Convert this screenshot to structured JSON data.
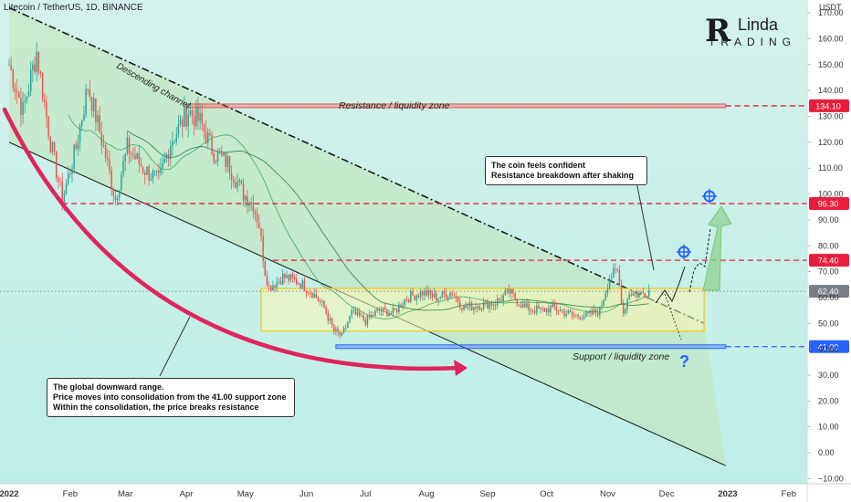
{
  "chart_title": "Litecoin / TetherUS, 1D, BINANCE",
  "logo": {
    "mark": "R",
    "word": "Linda",
    "sub": "TRADING"
  },
  "chart_data": {
    "type": "candlestick",
    "y_axis": {
      "unit": "USDT",
      "ticks": [
        -10,
        0,
        10,
        20,
        30,
        40,
        50,
        60,
        70,
        80,
        90,
        100,
        110,
        120,
        130,
        140,
        150,
        160,
        170
      ],
      "tick_labels": [
        "−10.00",
        "0.00",
        "10.00",
        "20.00",
        "30.00",
        "40.00",
        "50.00",
        "60.00",
        "70.00",
        "80.00",
        "90.00",
        "100.00",
        "110.00",
        "120.00",
        "130.00",
        "140.00",
        "150.00",
        "160.00",
        "170.00"
      ],
      "range": [
        -12,
        175
      ]
    },
    "x_axis": {
      "ticks": [
        "2022",
        "Feb",
        "Mar",
        "Apr",
        "May",
        "Jun",
        "Jul",
        "Aug",
        "Sep",
        "Oct",
        "Nov",
        "Dec",
        "2023",
        "Feb"
      ],
      "tick_dates": [
        "2022-01-01",
        "2022-02-01",
        "2022-03-01",
        "2022-04-01",
        "2022-05-01",
        "2022-06-01",
        "2022-07-01",
        "2022-08-01",
        "2022-09-01",
        "2022-10-01",
        "2022-11-01",
        "2022-12-01",
        "2023-01-01",
        "2023-02-01"
      ],
      "bold_ticks": [
        "2022",
        "2023"
      ],
      "range": [
        "2022-01-01",
        "2023-02-15"
      ]
    },
    "price_anchors": [
      [
        "2022-01-01",
        150
      ],
      [
        "2022-01-08",
        132
      ],
      [
        "2022-01-15",
        155
      ],
      [
        "2022-01-22",
        120
      ],
      [
        "2022-01-28",
        98
      ],
      [
        "2022-02-04",
        118
      ],
      [
        "2022-02-10",
        142
      ],
      [
        "2022-02-18",
        118
      ],
      [
        "2022-02-24",
        98
      ],
      [
        "2022-03-02",
        118
      ],
      [
        "2022-03-10",
        110
      ],
      [
        "2022-03-18",
        105
      ],
      [
        "2022-03-24",
        120
      ],
      [
        "2022-04-02",
        132
      ],
      [
        "2022-04-08",
        128
      ],
      [
        "2022-04-15",
        116
      ],
      [
        "2022-04-22",
        112
      ],
      [
        "2022-04-30",
        100
      ],
      [
        "2022-05-05",
        96
      ],
      [
        "2022-05-08",
        88
      ],
      [
        "2022-05-11",
        70
      ],
      [
        "2022-05-13",
        64
      ],
      [
        "2022-05-20",
        68
      ],
      [
        "2022-05-28",
        66
      ],
      [
        "2022-06-04",
        62
      ],
      [
        "2022-06-10",
        56
      ],
      [
        "2022-06-15",
        47
      ],
      [
        "2022-06-19",
        45
      ],
      [
        "2022-06-24",
        54
      ],
      [
        "2022-07-01",
        51
      ],
      [
        "2022-07-08",
        55
      ],
      [
        "2022-07-15",
        54
      ],
      [
        "2022-07-22",
        60
      ],
      [
        "2022-07-30",
        62
      ],
      [
        "2022-08-06",
        60
      ],
      [
        "2022-08-14",
        62
      ],
      [
        "2022-08-20",
        56
      ],
      [
        "2022-08-27",
        57
      ],
      [
        "2022-09-05",
        58
      ],
      [
        "2022-09-12",
        62
      ],
      [
        "2022-09-20",
        56
      ],
      [
        "2022-09-28",
        55
      ],
      [
        "2022-10-05",
        56
      ],
      [
        "2022-10-14",
        53
      ],
      [
        "2022-10-22",
        53
      ],
      [
        "2022-10-28",
        55
      ],
      [
        "2022-11-02",
        68
      ],
      [
        "2022-11-06",
        70
      ],
      [
        "2022-11-09",
        54
      ],
      [
        "2022-11-12",
        62
      ],
      [
        "2022-11-17",
        61
      ],
      [
        "2022-11-22",
        63
      ]
    ],
    "price_levels": [
      {
        "value": 134.1,
        "label": "134.10",
        "style": "dashed",
        "color": "#e91e3a",
        "name": "resistance-line"
      },
      {
        "value": 96.3,
        "label": "96.30",
        "style": "dashed",
        "color": "#e91e3a",
        "name": "level-9630-line"
      },
      {
        "value": 74.4,
        "label": "74.40",
        "style": "dashed",
        "color": "#e91e3a",
        "name": "level-7440-line"
      },
      {
        "value": 62.4,
        "label": "62.40",
        "style": "dotted",
        "color": "#6b6f79",
        "name": "current-price-line"
      },
      {
        "value": 41.0,
        "label": "41.00",
        "style": "dashed",
        "color": "#2962ff",
        "name": "support-line"
      }
    ],
    "zones": [
      {
        "name": "resistance-zone",
        "label": "Resistance / liquidity zone",
        "from": "2022-04-01",
        "to": "2022-12-31",
        "low": 133.4,
        "high": 134.8,
        "color": "#ef5350"
      },
      {
        "name": "support-zone",
        "label": "Support / liquidity zone",
        "from": "2022-06-16",
        "to": "2022-12-31",
        "low": 40.3,
        "high": 41.7,
        "color": "#2962ff"
      },
      {
        "name": "consolidation-box",
        "label": "",
        "from": "2022-05-09",
        "to": "2022-12-20",
        "low": 47,
        "high": 63.5,
        "color": "#f5c518"
      }
    ],
    "descending_channel": {
      "label": "Descending channel",
      "upper": [
        [
          "2022-01-01",
          172
        ],
        [
          "2022-12-20",
          50
        ]
      ],
      "lower": [
        [
          "2022-01-01",
          120
        ],
        [
          "2022-12-31",
          -5
        ]
      ]
    },
    "annotations": {
      "channel_label": "Descending channel",
      "resistance_label": "Resistance / liquidity zone",
      "support_label": "Support / liquidity zone",
      "note_right": [
        "The coin feels confident",
        "Resistance breakdown after shaking"
      ],
      "note_left": [
        "The global downward range.",
        "Price moves into consolidation from the 41.00 support zone",
        "Within the consolidation, the price breaks resistance"
      ],
      "question_mark": "?"
    },
    "grid": false,
    "legend": "none"
  }
}
